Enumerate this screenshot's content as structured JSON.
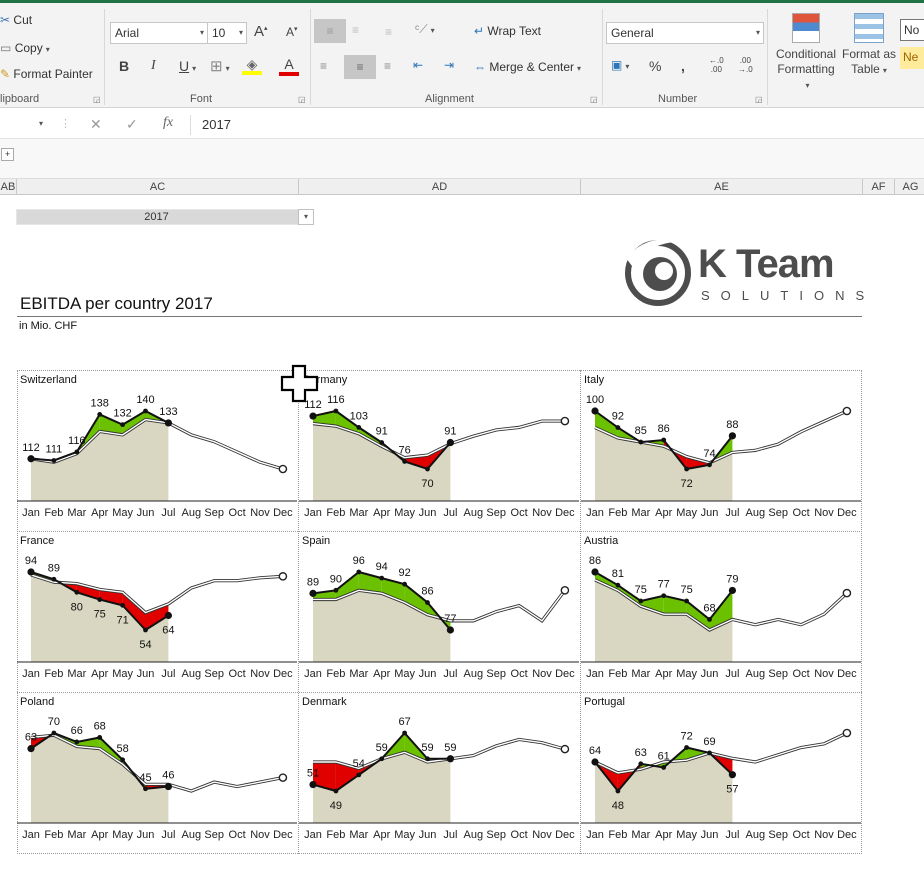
{
  "ribbon": {
    "clipboard": {
      "cut": "Cut",
      "copy": "Copy",
      "format_painter": "Format Painter",
      "group": "lipboard"
    },
    "font": {
      "name": "Arial",
      "size": "10",
      "group": "Font",
      "grow": "A",
      "shrink": "A",
      "bold": "B",
      "italic": "I",
      "underline": "U",
      "font_color": "A"
    },
    "alignment": {
      "wrap_text": "Wrap Text",
      "merge_center": "Merge & Center",
      "group": "Alignment"
    },
    "number": {
      "format": "General",
      "group": "Number",
      "percent": "%",
      "comma": " Β",
      "inc_dec": ".0\n.00",
      "dec_dec": ".00\n.0"
    },
    "styles": {
      "conditional": "Conditional",
      "conditional2": "Formatting",
      "format_as": "Format as",
      "format_as2": "Table",
      "normal": "No",
      "neutral": "Ne"
    }
  },
  "formula_bar": {
    "value": "2017",
    "fx": "fx",
    "cancel": "✕",
    "enter": "✓"
  },
  "columns": [
    "AB",
    "AC",
    "AD",
    "AE",
    "AF",
    "AG"
  ],
  "sheet": {
    "year": "2017",
    "title": "EBITDA per country 2017",
    "subtitle": "in Mio. CHF"
  },
  "logo": {
    "name": "K Team",
    "tag": "SOLUTIONS"
  },
  "colors": {
    "positive": "#6bc000",
    "negative": "#e00000",
    "area": "#d9d7c1",
    "line": "#111111",
    "ribbon_accent": "#217346"
  },
  "months": [
    "Jan",
    "Feb",
    "Mar",
    "Apr",
    "May",
    "Jun",
    "Jul",
    "Aug",
    "Sep",
    "Oct",
    "Nov",
    "Dec"
  ],
  "chart_data": [
    {
      "type": "line",
      "country": "Switzerland",
      "actual": [
        112,
        111,
        116,
        138,
        132,
        140,
        133
      ],
      "plan": [
        112,
        110,
        115,
        128,
        126,
        135,
        133,
        126,
        122,
        116,
        110,
        106
      ]
    },
    {
      "type": "line",
      "country": "Germany",
      "actual": [
        112,
        116,
        103,
        91,
        76,
        70,
        91
      ],
      "plan": [
        106,
        104,
        98,
        88,
        79,
        81,
        90,
        96,
        101,
        103,
        108,
        108
      ]
    },
    {
      "type": "line",
      "country": "Italy",
      "actual": [
        100,
        92,
        85,
        86,
        72,
        74,
        88
      ],
      "plan": [
        92,
        87,
        85,
        83,
        78,
        75,
        80,
        81,
        84,
        90,
        95,
        100
      ]
    },
    {
      "type": "line",
      "country": "France",
      "actual": [
        94,
        89,
        80,
        75,
        71,
        54,
        64
      ],
      "plan": [
        92,
        87,
        86,
        82,
        80,
        66,
        72,
        83,
        88,
        88,
        90,
        91
      ]
    },
    {
      "type": "line",
      "country": "Spain",
      "actual": [
        89,
        90,
        96,
        94,
        92,
        86,
        77
      ],
      "plan": [
        87,
        87,
        90,
        89,
        86,
        82,
        80,
        80,
        83,
        85,
        80,
        90
      ]
    },
    {
      "type": "line",
      "country": "Austria",
      "actual": [
        86,
        81,
        75,
        77,
        75,
        68,
        79
      ],
      "plan": [
        83,
        79,
        73,
        70,
        70,
        64,
        68,
        66,
        68,
        66,
        70,
        78
      ]
    },
    {
      "type": "line",
      "country": "Poland",
      "actual": [
        63,
        70,
        66,
        68,
        58,
        45,
        46
      ],
      "plan": [
        68,
        69,
        64,
        63,
        56,
        47,
        47,
        44,
        48,
        46,
        48,
        50
      ]
    },
    {
      "type": "line",
      "country": "Denmark",
      "actual": [
        51,
        49,
        54,
        59,
        67,
        59,
        59
      ],
      "plan": [
        58,
        58,
        56,
        59,
        61,
        58,
        59,
        60,
        63,
        65,
        64,
        62
      ]
    },
    {
      "type": "line",
      "country": "Portugal",
      "actual": [
        64,
        48,
        63,
        61,
        72,
        69,
        57
      ],
      "plan": [
        64,
        58,
        60,
        64,
        65,
        69,
        66,
        64,
        68,
        72,
        74,
        80
      ]
    }
  ]
}
